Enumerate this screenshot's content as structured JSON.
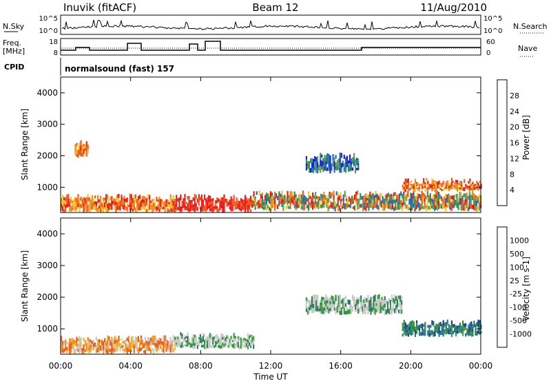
{
  "header": {
    "station": "Inuvik (fitACF)",
    "beam": "Beam 12",
    "date": "11/Aug/2010"
  },
  "status_panels": {
    "nsky_label": "N.Sky",
    "nsky_ticks": [
      "10^5",
      "10^0"
    ],
    "nsearch_label": "N.Search",
    "nsearch_ticks": [
      "10^5",
      "10^0"
    ],
    "freq_label_line1": "Freq.",
    "freq_label_line2": "[MHz]",
    "freq_ticks": [
      "18",
      "8"
    ],
    "nave_label": "Nave",
    "nave_ticks": [
      "60",
      "0"
    ],
    "cpid_label": "CPID",
    "cpid_text": "normalsound (fast) 157"
  },
  "colors": {
    "power_scale": [
      "#1e1ee6",
      "#1f6fbf",
      "#3a8a5a",
      "#5aa55a",
      "#f0c830",
      "#f08c1e",
      "#f05a1e",
      "#e61e1e"
    ],
    "velocity_scale": [
      "#1e3c9c",
      "#2a6fa8",
      "#2e7f5a",
      "#3aa03a",
      "#c8c8c8",
      "#f0b428",
      "#f08c1e",
      "#f05a1e",
      "#e61e1e"
    ]
  },
  "chart_data": [
    {
      "type": "heatmap",
      "title": "Power",
      "xlabel": "Time UT",
      "ylabel": "Slant Range [km]",
      "x_ticks": [
        "00:00",
        "04:00",
        "08:00",
        "12:00",
        "16:00",
        "20:00",
        "00:00"
      ],
      "y_ticks": [
        1000,
        2000,
        3000,
        4000
      ],
      "ylim": [
        200,
        4500
      ],
      "xlim_hours": [
        0,
        24
      ],
      "colorbar_label": "Power [dB]",
      "colorbar_ticks": [
        4,
        8,
        12,
        16,
        20,
        24,
        28
      ],
      "features": [
        {
          "t_start": 0.0,
          "t_end": 6.5,
          "range_lo": 250,
          "range_hi": 700,
          "level": "high"
        },
        {
          "t_start": 6.5,
          "t_end": 11.0,
          "range_lo": 250,
          "range_hi": 700,
          "level": "very_high"
        },
        {
          "t_start": 0.8,
          "t_end": 1.6,
          "range_lo": 2000,
          "range_hi": 2400,
          "level": "high"
        },
        {
          "t_start": 11.0,
          "t_end": 24.0,
          "range_lo": 300,
          "range_hi": 800,
          "level": "mixed"
        },
        {
          "t_start": 19.5,
          "t_end": 24.0,
          "range_lo": 900,
          "range_hi": 1200,
          "level": "high"
        },
        {
          "t_start": 14.0,
          "t_end": 17.0,
          "range_lo": 1500,
          "range_hi": 2000,
          "level": "low"
        }
      ]
    },
    {
      "type": "heatmap",
      "title": "Velocity",
      "xlabel": "Time UT",
      "ylabel": "Slant Range [km]",
      "x_ticks": [
        "00:00",
        "04:00",
        "08:00",
        "12:00",
        "16:00",
        "20:00",
        "00:00"
      ],
      "y_ticks": [
        1000,
        2000,
        3000,
        4000
      ],
      "ylim": [
        200,
        4500
      ],
      "xlim_hours": [
        0,
        24
      ],
      "colorbar_label": "Velocity [m s-1]",
      "colorbar_ticks": [
        1000,
        500,
        100,
        25,
        -25,
        -100,
        -500,
        -1000
      ],
      "features": [
        {
          "t_start": 0.0,
          "t_end": 6.5,
          "range_lo": 250,
          "range_hi": 700,
          "level": "negative"
        },
        {
          "t_start": 6.5,
          "t_end": 11.0,
          "range_lo": 400,
          "range_hi": 800,
          "level": "near_zero"
        },
        {
          "t_start": 14.0,
          "t_end": 19.5,
          "range_lo": 1500,
          "range_hi": 2000,
          "level": "near_zero"
        },
        {
          "t_start": 19.5,
          "t_end": 24.0,
          "range_lo": 800,
          "range_hi": 1200,
          "level": "positive"
        }
      ]
    }
  ]
}
